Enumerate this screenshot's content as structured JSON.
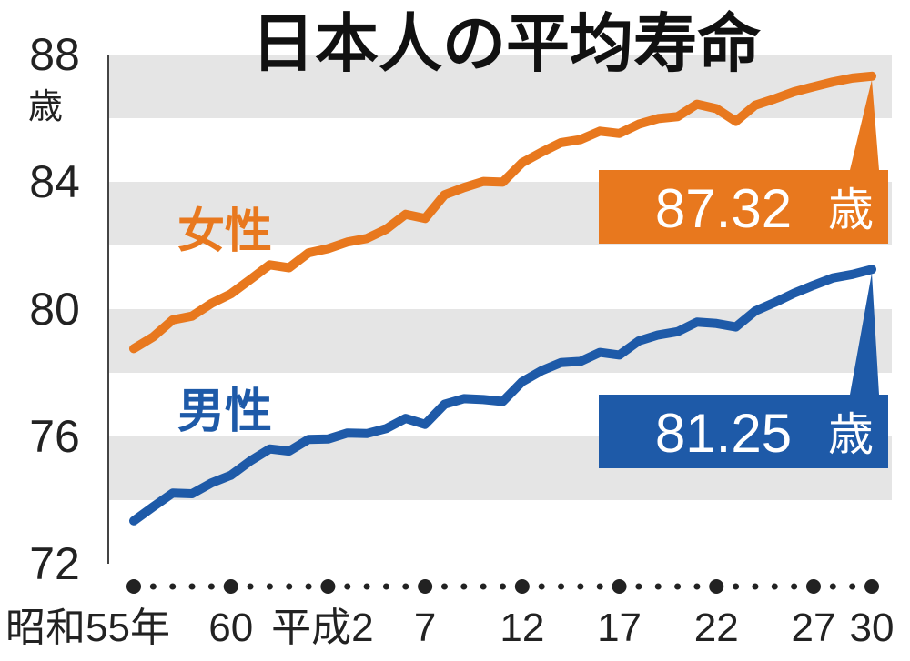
{
  "chart_data": {
    "type": "line",
    "title": "日本人の平均寿命",
    "y_unit": "歳",
    "ylim": [
      72,
      88
    ],
    "y_ticks": [
      "88",
      "84",
      "80",
      "76",
      "72"
    ],
    "x_tick_labels": [
      "昭和55年",
      "60",
      "平成2",
      "7",
      "12",
      "17",
      "22",
      "27",
      "30"
    ],
    "x_tick_years": [
      1980,
      1985,
      1990,
      1995,
      2000,
      2005,
      2010,
      2015,
      2018
    ],
    "x_range": [
      1980,
      2018
    ],
    "grid": "horizontal bands",
    "x": [
      1980,
      1981,
      1982,
      1983,
      1984,
      1985,
      1986,
      1987,
      1988,
      1989,
      1990,
      1991,
      1992,
      1993,
      1994,
      1995,
      1996,
      1997,
      1998,
      1999,
      2000,
      2001,
      2002,
      2003,
      2004,
      2005,
      2006,
      2007,
      2008,
      2009,
      2010,
      2011,
      2012,
      2013,
      2014,
      2015,
      2016,
      2017,
      2018
    ],
    "series": [
      {
        "name": "女性",
        "color": "#e8781e",
        "callout": "87.32",
        "callout_unit": "歳",
        "values": [
          78.76,
          79.13,
          79.66,
          79.78,
          80.18,
          80.48,
          80.93,
          81.39,
          81.3,
          81.77,
          81.9,
          82.11,
          82.22,
          82.51,
          82.98,
          82.85,
          83.59,
          83.82,
          84.01,
          83.99,
          84.6,
          84.93,
          85.23,
          85.33,
          85.59,
          85.52,
          85.81,
          85.99,
          86.05,
          86.44,
          86.3,
          85.9,
          86.41,
          86.61,
          86.83,
          86.99,
          87.14,
          87.26,
          87.32
        ]
      },
      {
        "name": "男性",
        "color": "#1e5aa8",
        "callout": "81.25",
        "callout_unit": "歳",
        "values": [
          73.35,
          73.79,
          74.22,
          74.2,
          74.54,
          74.78,
          75.23,
          75.61,
          75.54,
          75.91,
          75.92,
          76.11,
          76.09,
          76.25,
          76.57,
          76.38,
          77.01,
          77.19,
          77.16,
          77.1,
          77.72,
          78.07,
          78.32,
          78.36,
          78.64,
          78.56,
          79.0,
          79.19,
          79.29,
          79.59,
          79.55,
          79.44,
          79.94,
          80.21,
          80.5,
          80.75,
          80.98,
          81.09,
          81.25
        ]
      }
    ]
  }
}
